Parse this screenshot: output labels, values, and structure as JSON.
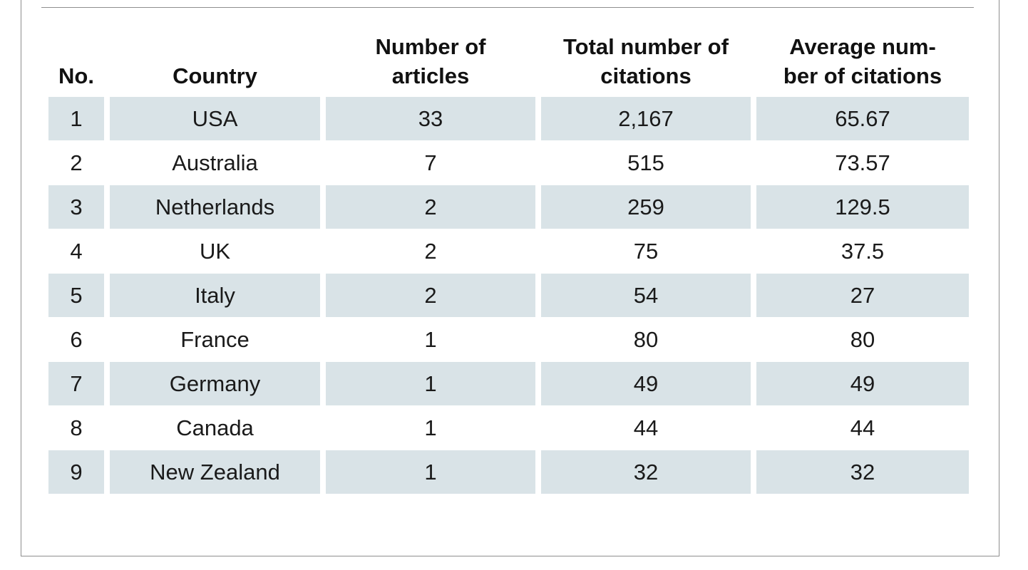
{
  "table": {
    "headers": [
      "No.",
      "Country",
      "Number of articles",
      "Total number of citations",
      "Average num-ber of citations"
    ],
    "header_lines": [
      [
        "No."
      ],
      [
        "Country"
      ],
      [
        "Number of",
        "articles"
      ],
      [
        "Total number of",
        "citations"
      ],
      [
        "Average num-",
        "ber of citations"
      ]
    ],
    "rows": [
      [
        "1",
        "USA",
        "33",
        "2,167",
        "65.67"
      ],
      [
        "2",
        "Australia",
        "7",
        "515",
        "73.57"
      ],
      [
        "3",
        "Netherlands",
        "2",
        "259",
        "129.5"
      ],
      [
        "4",
        "UK",
        "2",
        "75",
        "37.5"
      ],
      [
        "5",
        "Italy",
        "2",
        "54",
        "27"
      ],
      [
        "6",
        "France",
        "1",
        "80",
        "80"
      ],
      [
        "7",
        "Germany",
        "1",
        "49",
        "49"
      ],
      [
        "8",
        "Canada",
        "1",
        "44",
        "44"
      ],
      [
        "9",
        "New Zealand",
        "1",
        "32",
        "32"
      ]
    ]
  },
  "colors": {
    "stripe": "#d9e3e7",
    "frame": "#8e8e8e",
    "text": "#1a1a1a"
  }
}
